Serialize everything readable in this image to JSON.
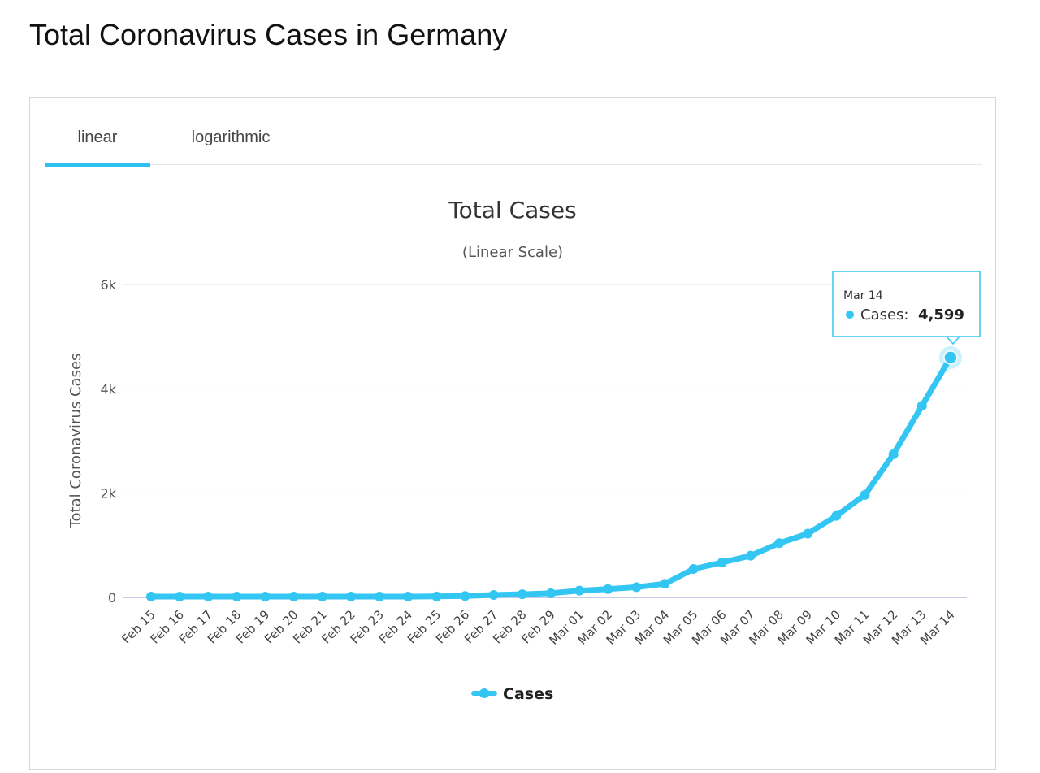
{
  "page": {
    "title": "Total Coronavirus Cases in Germany"
  },
  "tabs": [
    {
      "label": "linear",
      "active": true
    },
    {
      "label": "logarithmic",
      "active": false
    }
  ],
  "colors": {
    "series": "#33c6f2",
    "accent": "#2ec1f0"
  },
  "tooltip": {
    "date": "Mar 14",
    "series_label": "Cases:",
    "value": "4,599"
  },
  "chart_data": {
    "type": "line",
    "title": "Total Cases",
    "subtitle": "(Linear Scale)",
    "ylabel": "Total Coronavirus Cases",
    "xlabel": "",
    "ylim": [
      0,
      6000
    ],
    "yticks": [
      0,
      2000,
      4000,
      6000
    ],
    "ytick_labels": [
      "0",
      "2k",
      "4k",
      "6k"
    ],
    "grid": true,
    "legend_position": "bottom-center",
    "categories": [
      "Feb 15",
      "Feb 16",
      "Feb 17",
      "Feb 18",
      "Feb 19",
      "Feb 20",
      "Feb 21",
      "Feb 22",
      "Feb 23",
      "Feb 24",
      "Feb 25",
      "Feb 26",
      "Feb 27",
      "Feb 28",
      "Feb 29",
      "Mar 01",
      "Mar 02",
      "Mar 03",
      "Mar 04",
      "Mar 05",
      "Mar 06",
      "Mar 07",
      "Mar 08",
      "Mar 09",
      "Mar 10",
      "Mar 11",
      "Mar 12",
      "Mar 13",
      "Mar 14"
    ],
    "series": [
      {
        "name": "Cases",
        "values": [
          16,
          16,
          16,
          16,
          16,
          16,
          16,
          16,
          16,
          16,
          18,
          27,
          46,
          60,
          79,
          130,
          159,
          196,
          262,
          545,
          670,
          800,
          1040,
          1224,
          1565,
          1966,
          2745,
          3675,
          4599
        ]
      }
    ]
  }
}
